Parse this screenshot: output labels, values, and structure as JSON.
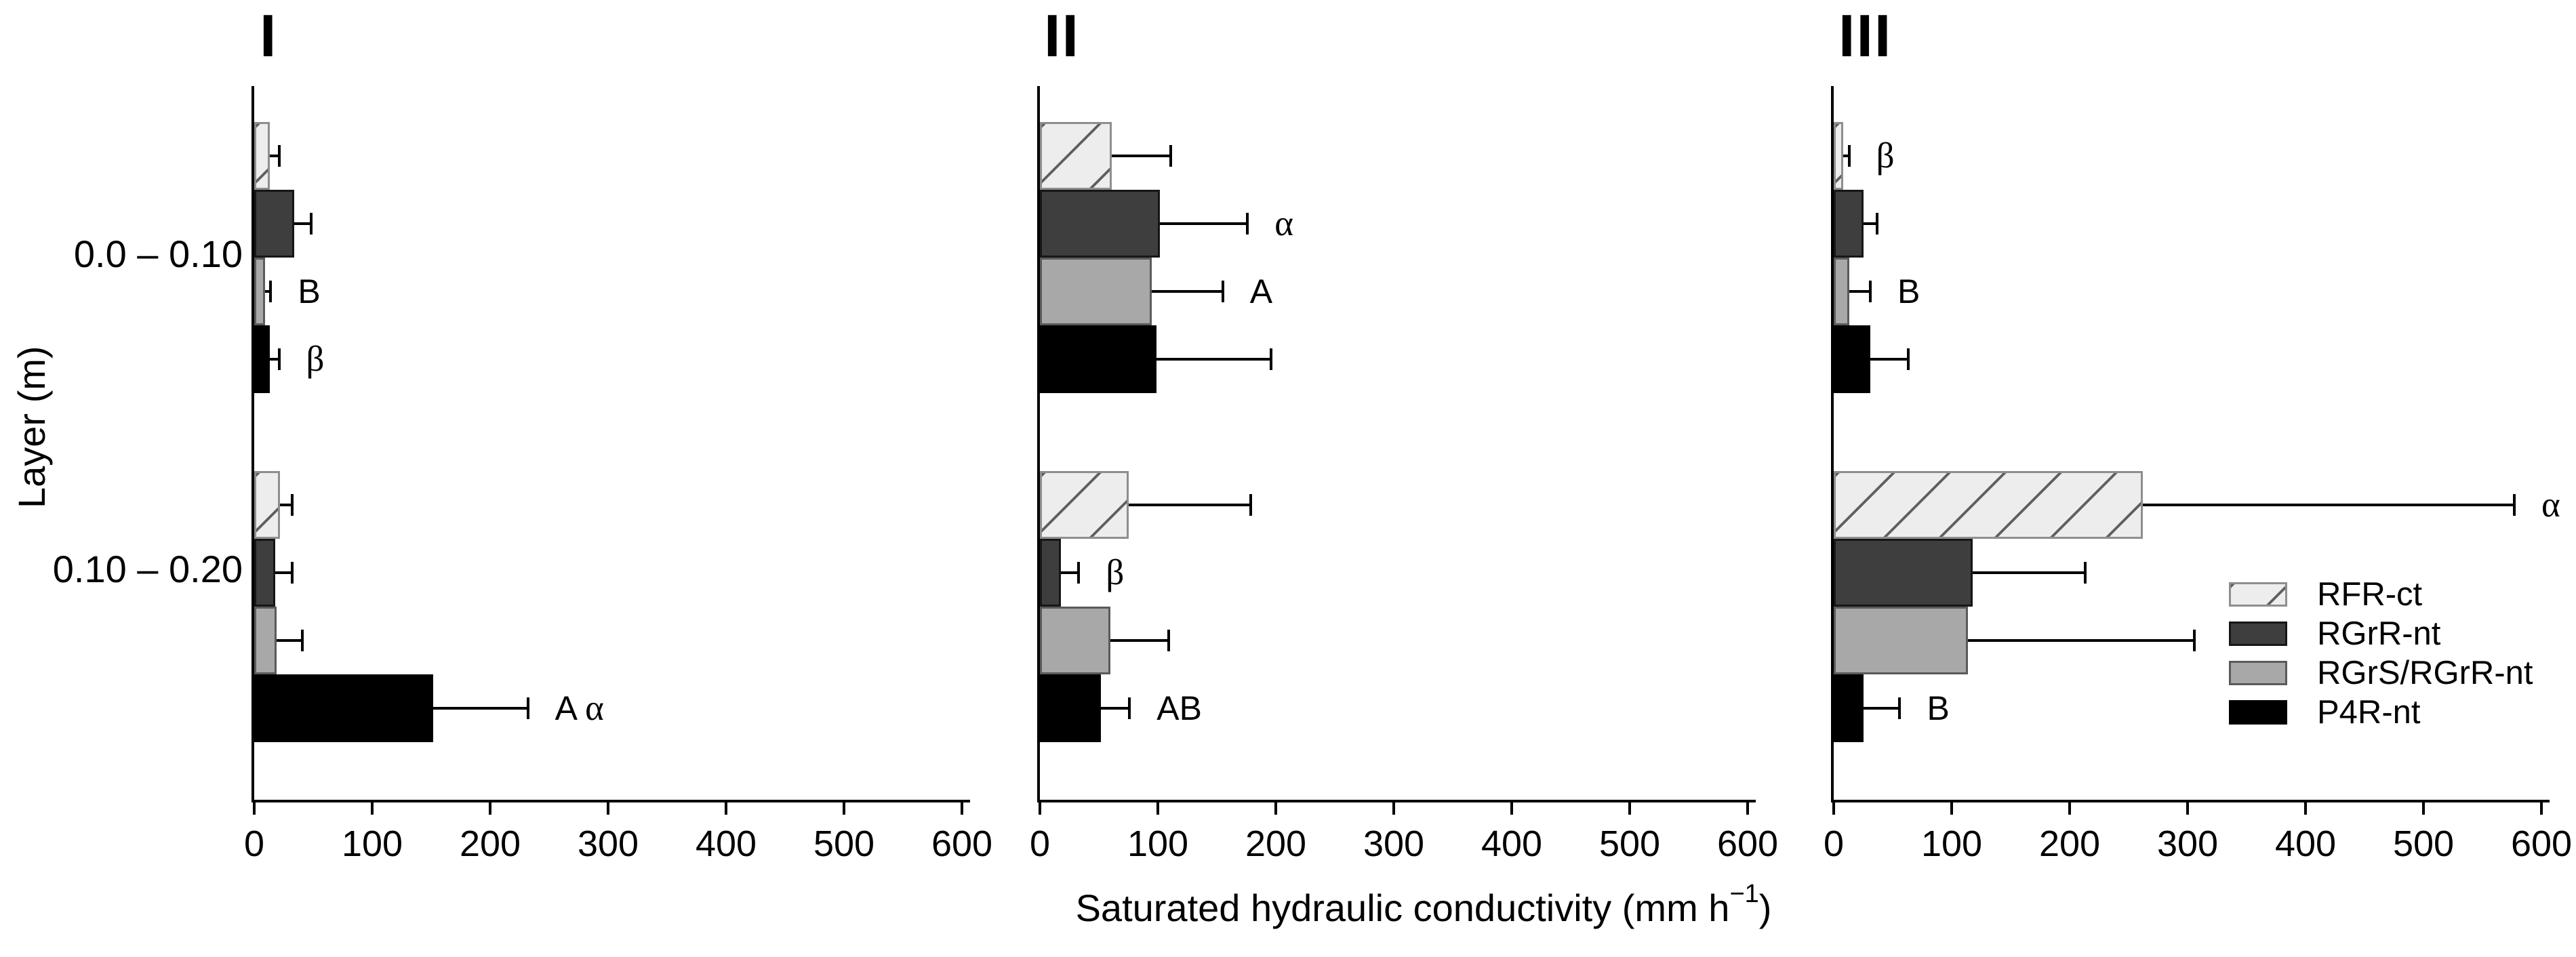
{
  "chart_data": {
    "type": "bar",
    "orientation": "horizontal",
    "xlabel_pre": "Saturated hydraulic conductivity (mm h",
    "xlabel_sup": "−1",
    "xlabel_post": ")",
    "ylabel": "Layer (m)",
    "xlim": [
      0,
      600
    ],
    "xticks": [
      0,
      100,
      200,
      300,
      400,
      500,
      600
    ],
    "categories": [
      "0.0 – 0.10",
      "0.10 – 0.20"
    ],
    "grid": false,
    "legend_position": "right-center-of-panel-III",
    "series": [
      {
        "name": "RFR-ct",
        "fill": "#ededed",
        "border": "#8e8e8e",
        "pattern": "hatch",
        "hatch_color": "#606060"
      },
      {
        "name": "RGrR-nt",
        "fill": "#3e3e3e",
        "border": "#161616",
        "pattern": "solid"
      },
      {
        "name": "RGrS/RGrR-nt",
        "fill": "#a8a8a8",
        "border": "#5a5a5a",
        "pattern": "solid"
      },
      {
        "name": "P4R-nt",
        "fill": "#000000",
        "border": "#000000",
        "pattern": "solid"
      }
    ],
    "error_bar_color": "#000000",
    "panels": [
      {
        "title": "I",
        "groups": [
          {
            "category": "0.0 – 0.10",
            "bars": [
              {
                "series": "RFR-ct",
                "value": 13,
                "err_hi": 21,
                "label": ""
              },
              {
                "series": "RGrR-nt",
                "value": 34,
                "err_hi": 48,
                "label": ""
              },
              {
                "series": "RGrS/RGrR-nt",
                "value": 9,
                "err_hi": 14,
                "label": "B"
              },
              {
                "series": "P4R-nt",
                "value": 13,
                "err_hi": 21,
                "label": "β"
              }
            ]
          },
          {
            "category": "0.10 – 0.20",
            "bars": [
              {
                "series": "RFR-ct",
                "value": 22,
                "err_hi": 32,
                "label": ""
              },
              {
                "series": "RGrR-nt",
                "value": 18,
                "err_hi": 32,
                "label": ""
              },
              {
                "series": "RGrS/RGrR-nt",
                "value": 19,
                "err_hi": 41,
                "label": ""
              },
              {
                "series": "P4R-nt",
                "value": 152,
                "err_hi": 232,
                "label": "A α"
              }
            ]
          }
        ]
      },
      {
        "title": "II",
        "groups": [
          {
            "category": "0.0 – 0.10",
            "bars": [
              {
                "series": "RFR-ct",
                "value": 61,
                "err_hi": 111,
                "label": ""
              },
              {
                "series": "RGrR-nt",
                "value": 102,
                "err_hi": 176,
                "label": "α"
              },
              {
                "series": "RGrS/RGrR-nt",
                "value": 95,
                "err_hi": 155,
                "label": "A"
              },
              {
                "series": "P4R-nt",
                "value": 99,
                "err_hi": 196,
                "label": ""
              }
            ]
          },
          {
            "category": "0.10 – 0.20",
            "bars": [
              {
                "series": "RFR-ct",
                "value": 75,
                "err_hi": 179,
                "label": ""
              },
              {
                "series": "RGrR-nt",
                "value": 18,
                "err_hi": 33,
                "label": "β"
              },
              {
                "series": "RGrS/RGrR-nt",
                "value": 60,
                "err_hi": 109,
                "label": ""
              },
              {
                "series": "P4R-nt",
                "value": 52,
                "err_hi": 76,
                "label": "AB"
              }
            ]
          }
        ]
      },
      {
        "title": "III",
        "groups": [
          {
            "category": "0.0 – 0.10",
            "bars": [
              {
                "series": "RFR-ct",
                "value": 8,
                "err_hi": 13,
                "label": "β"
              },
              {
                "series": "RGrR-nt",
                "value": 25,
                "err_hi": 37,
                "label": ""
              },
              {
                "series": "RGrS/RGrR-nt",
                "value": 13,
                "err_hi": 31,
                "label": "B"
              },
              {
                "series": "P4R-nt",
                "value": 31,
                "err_hi": 63,
                "label": ""
              }
            ]
          },
          {
            "category": "0.10 – 0.20",
            "bars": [
              {
                "series": "RFR-ct",
                "value": 262,
                "err_hi": 577,
                "label": "α"
              },
              {
                "series": "RGrR-nt",
                "value": 118,
                "err_hi": 213,
                "label": ""
              },
              {
                "series": "RGrS/RGrR-nt",
                "value": 114,
                "err_hi": 306,
                "label": ""
              },
              {
                "series": "P4R-nt",
                "value": 25,
                "err_hi": 56,
                "label": "B"
              }
            ]
          }
        ]
      }
    ]
  }
}
